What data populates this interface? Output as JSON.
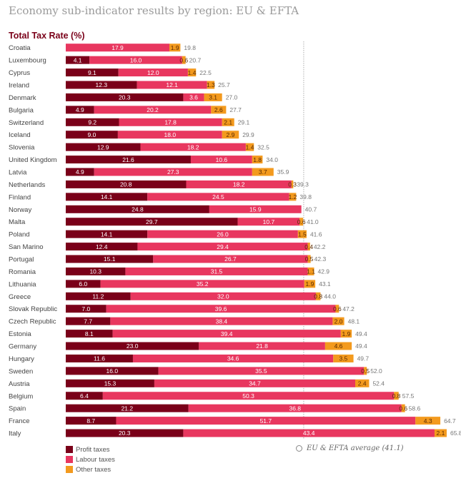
{
  "page": {
    "title": "Economy sub-indicator results by region: EU & EFTA",
    "subtitle": "Total Tax Rate (%)"
  },
  "legend": {
    "items": [
      {
        "label": "Profit taxes",
        "color": "#7a0019"
      },
      {
        "label": "Labour taxes",
        "color": "#e8375f"
      },
      {
        "label": "Other taxes",
        "color": "#f39a1e"
      }
    ]
  },
  "average_note": "EU & EFTA average (41.1)",
  "chart_data": {
    "type": "bar",
    "orientation": "horizontal",
    "stacked": true,
    "title": "Economy sub-indicator results by region: EU & EFTA",
    "subtitle": "Total Tax Rate (%)",
    "xlim": [
      0,
      66
    ],
    "reference_line": {
      "value": 41.1,
      "label": "EU & EFTA average (41.1)"
    },
    "categories": [
      "Croatia",
      "Luxembourg",
      "Cyprus",
      "Ireland",
      "Denmark",
      "Bulgaria",
      "Switzerland",
      "Iceland",
      "Slovenia",
      "United Kingdom",
      "Latvia",
      "Netherlands",
      "Finland",
      "Norway",
      "Malta",
      "Poland",
      "San Marino",
      "Portugal",
      "Romania",
      "Lithuania",
      "Greece",
      "Slovak Republic",
      "Czech Republic",
      "Estonia",
      "Germany",
      "Hungary",
      "Sweden",
      "Austria",
      "Belgium",
      "Spain",
      "France",
      "Italy"
    ],
    "series": [
      {
        "name": "Profit taxes",
        "color": "#7a0019",
        "values": [
          0,
          4.1,
          9.1,
          12.3,
          20.3,
          4.9,
          9.2,
          9.0,
          12.9,
          21.6,
          4.9,
          20.8,
          14.1,
          24.8,
          29.7,
          14.1,
          12.4,
          15.1,
          10.3,
          6.0,
          11.2,
          7.0,
          7.7,
          8.1,
          23.0,
          11.6,
          16.0,
          15.3,
          6.4,
          21.2,
          8.7,
          20.3
        ],
        "labels": [
          "",
          "4.1",
          "9.1",
          "12.3",
          "20.3",
          "4.9",
          "9.2",
          "9.0",
          "12.9",
          "21.6",
          "4.9",
          "20.8",
          "14.1",
          "24.8",
          "29.7",
          "14.1",
          "12.4",
          "15.1",
          "10.3",
          "6.0",
          "11.2",
          "7.0",
          "7.7",
          "8.1",
          "23.0",
          "11.6",
          "16.0",
          "15.3",
          "6.4",
          "21.2",
          "8.7",
          "20.3"
        ]
      },
      {
        "name": "Labour taxes",
        "color": "#e8375f",
        "values": [
          17.9,
          16.0,
          12.0,
          12.1,
          3.6,
          20.2,
          17.8,
          18.0,
          18.2,
          10.6,
          27.3,
          18.2,
          24.5,
          15.9,
          10.7,
          26.0,
          29.4,
          26.7,
          31.5,
          35.2,
          32.0,
          39.6,
          38.4,
          39.4,
          21.8,
          34.6,
          35.5,
          34.7,
          50.3,
          36.8,
          51.7,
          43.4
        ],
        "labels": [
          "17.9",
          "16.0",
          "12.0",
          "12.1",
          "3.6",
          "20.2",
          "17.8",
          "18.0",
          "18.2",
          "10.6",
          "27.3",
          "18.2",
          "24.5",
          "15.9",
          "10.7",
          "26.0",
          "29.4",
          "26.7",
          "31.5",
          "35.2",
          "32.0",
          "39.6",
          "38.4",
          "39.4",
          "21.8",
          "34.6",
          "35.5",
          "34.7",
          "50.3",
          "36.8",
          "51.7",
          "43.4"
        ]
      },
      {
        "name": "Other taxes",
        "color": "#f39a1e",
        "values": [
          1.9,
          0.6,
          1.4,
          1.3,
          3.1,
          2.6,
          2.1,
          2.9,
          1.4,
          1.8,
          3.7,
          0.3,
          1.2,
          0,
          0.6,
          1.5,
          0.4,
          0.5,
          1.1,
          1.9,
          0.8,
          0.6,
          2.0,
          1.9,
          4.6,
          3.5,
          0.5,
          2.4,
          0.8,
          0.6,
          4.3,
          2.1
        ],
        "labels": [
          "1.9",
          "0.6",
          "1.4",
          "1.3",
          "3.1",
          "2.6",
          "2.1",
          "2.9",
          "1.4",
          "1.8",
          "3.7",
          "0.3",
          "1.2",
          "",
          "0.6",
          "1.5",
          "0.4",
          "0.5",
          "1.1",
          "1.9",
          "0.8",
          "0.6",
          "2.0",
          "1.9",
          "4.6",
          "3.5",
          "0.5",
          "2.4",
          "0.8",
          "0.6",
          "4.3",
          "2.1"
        ]
      }
    ],
    "totals": [
      "19.8",
      "20.7",
      "22.5",
      "25.7",
      "27.0",
      "27.7",
      "29.1",
      "29.9",
      "32.5",
      "34.0",
      "35.9",
      "39.3",
      "39.8",
      "40.7",
      "41.0",
      "41.6",
      "42.2",
      "42.3",
      "42.9",
      "43.1",
      "44.0",
      "47.2",
      "48.1",
      "49.4",
      "49.4",
      "49.7",
      "52.0",
      "52.4",
      "57.5",
      "58.6",
      "64.7",
      "65.8"
    ]
  }
}
